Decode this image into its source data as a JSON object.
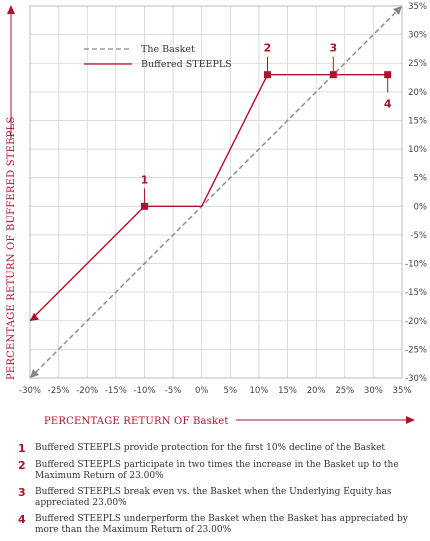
{
  "chart_data": {
    "type": "line",
    "xlabel": "PERCENTAGE RETURN OF Basket",
    "ylabel": "PERCENTAGE RETURN OF BUFFERED STEEPLS",
    "xlim": [
      -30,
      35
    ],
    "ylim": [
      -30,
      35
    ],
    "x_ticks": [
      "-30%",
      "-25%",
      "-20%",
      "-15%",
      "-10%",
      "-5%",
      "0%",
      "5%",
      "10%",
      "15%",
      "20%",
      "25%",
      "30%",
      "35%"
    ],
    "y_ticks": [
      "35%",
      "30%",
      "25%",
      "20%",
      "15%",
      "10%",
      "5%",
      "0%",
      "-5%",
      "-10%",
      "-15%",
      "-20%",
      "-25%",
      "-30%"
    ],
    "grid": true,
    "legend_position": "top-left",
    "series": [
      {
        "name": "The Basket",
        "style": "dashed",
        "color": "#888888",
        "x": [
          -30,
          35
        ],
        "y": [
          -30,
          35
        ]
      },
      {
        "name": "Buffered STEEPLS",
        "style": "solid",
        "color": "#b0122b",
        "x": [
          -30,
          -10,
          0,
          11.5,
          32.5
        ],
        "y": [
          -20,
          0,
          0,
          23,
          23
        ]
      }
    ],
    "markers": [
      {
        "label": "1",
        "x": -10,
        "y": 0,
        "label_pos": "above"
      },
      {
        "label": "2",
        "x": 11.5,
        "y": 23,
        "label_pos": "above"
      },
      {
        "label": "3",
        "x": 23,
        "y": 23,
        "label_pos": "above"
      },
      {
        "label": "4",
        "x": 32.5,
        "y": 23,
        "label_pos": "below"
      }
    ]
  },
  "notes": [
    {
      "num": "1",
      "text": "Buffered STEEPLS provide protection for the first 10% decline of the Basket"
    },
    {
      "num": "2",
      "text": "Buffered STEEPLS participate in two times the increase in the Basket up to the Maximum Return of 23.00%"
    },
    {
      "num": "3",
      "text": "Buffered STEEPLS break even vs. the Basket when the Underlying Equity has appreciated 23.00%"
    },
    {
      "num": "4",
      "text": "Buffered STEEPLS underperform the Basket when the Basket has appreciated by more than the Maximum Return of 23.00%"
    }
  ],
  "colors": {
    "accent": "#b0122b",
    "basket": "#888888",
    "grid": "#d4d4d4"
  }
}
